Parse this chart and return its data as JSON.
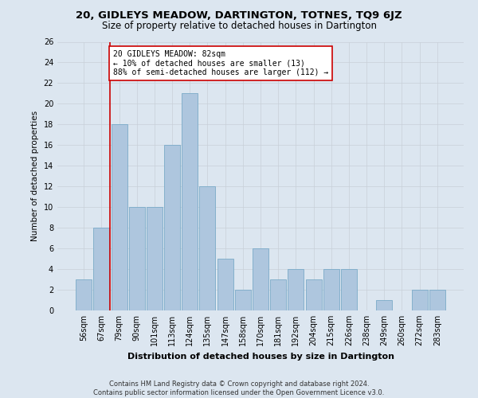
{
  "title": "20, GIDLEYS MEADOW, DARTINGTON, TOTNES, TQ9 6JZ",
  "subtitle": "Size of property relative to detached houses in Dartington",
  "xlabel": "Distribution of detached houses by size in Dartington",
  "ylabel": "Number of detached properties",
  "categories": [
    "56sqm",
    "67sqm",
    "79sqm",
    "90sqm",
    "101sqm",
    "113sqm",
    "124sqm",
    "135sqm",
    "147sqm",
    "158sqm",
    "170sqm",
    "181sqm",
    "192sqm",
    "204sqm",
    "215sqm",
    "226sqm",
    "238sqm",
    "249sqm",
    "260sqm",
    "272sqm",
    "283sqm"
  ],
  "values": [
    3,
    8,
    18,
    10,
    10,
    16,
    21,
    12,
    5,
    2,
    6,
    3,
    4,
    3,
    4,
    4,
    0,
    1,
    0,
    2,
    2
  ],
  "bar_color": "#aec6de",
  "bar_edge_color": "#7aaac8",
  "grid_color": "#c8d0d8",
  "vline_x_index": 2,
  "vline_color": "#cc0000",
  "annotation_text": "20 GIDLEYS MEADOW: 82sqm\n← 10% of detached houses are smaller (13)\n88% of semi-detached houses are larger (112) →",
  "annotation_box_color": "white",
  "annotation_box_edge": "#cc0000",
  "ylim": [
    0,
    26
  ],
  "yticks": [
    0,
    2,
    4,
    6,
    8,
    10,
    12,
    14,
    16,
    18,
    20,
    22,
    24,
    26
  ],
  "footer": "Contains HM Land Registry data © Crown copyright and database right 2024.\nContains public sector information licensed under the Open Government Licence v3.0.",
  "background_color": "#dce6f0",
  "plot_bg_color": "#dce6f0",
  "title_fontsize": 9.5,
  "subtitle_fontsize": 8.5,
  "xlabel_fontsize": 8,
  "ylabel_fontsize": 7.5,
  "tick_fontsize": 7,
  "annotation_fontsize": 7,
  "footer_fontsize": 6
}
